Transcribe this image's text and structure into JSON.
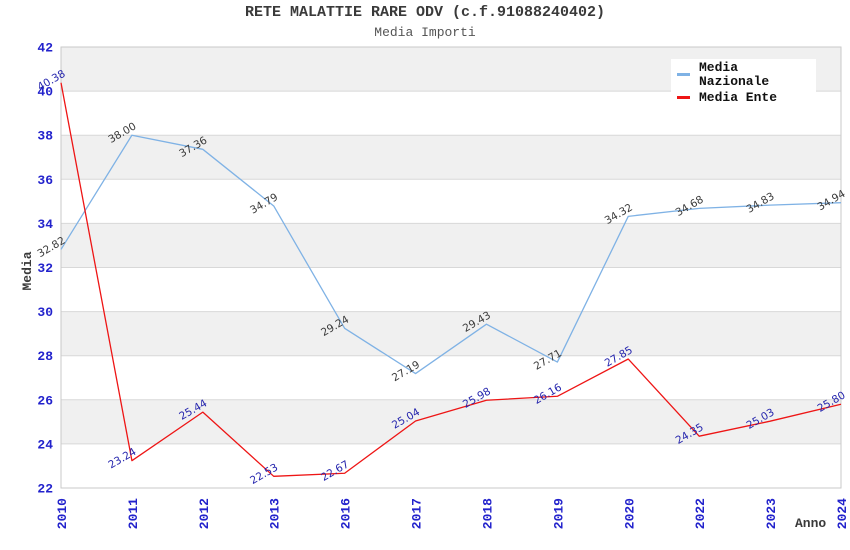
{
  "chart_data": {
    "type": "line",
    "title": "RETE MALATTIE RARE ODV (c.f.91088240402)",
    "subtitle": "Media Importi",
    "xlabel": "Anno",
    "ylabel": "Media",
    "ylim": [
      22,
      42
    ],
    "ytick_step": 2,
    "grid": "horizontal gridlines with alternating shaded bands",
    "legend_position": "top-right",
    "categories": [
      "2010",
      "2011",
      "2012",
      "2013",
      "2016",
      "2017",
      "2018",
      "2019",
      "2020",
      "2022",
      "2023",
      "2024"
    ],
    "series": [
      {
        "name": "Media Nazionale",
        "color": "#7fb2e5",
        "label_color": "#3a3a3a",
        "values": [
          32.82,
          38.0,
          37.36,
          34.79,
          29.24,
          27.19,
          29.43,
          27.71,
          34.32,
          34.68,
          34.83,
          34.94
        ]
      },
      {
        "name": "Media Ente",
        "color": "#ee1515",
        "label_color": "#2424ad",
        "values": [
          40.38,
          23.24,
          25.44,
          22.53,
          22.67,
          25.04,
          25.98,
          26.16,
          27.85,
          24.35,
          25.03,
          25.8
        ]
      }
    ],
    "colors": {
      "axis_tick": "#2222cc",
      "band": "#f0f0f0",
      "gridline": "#d8d8d8",
      "plot_border": "#c9c9c9",
      "title": "#3a3a3a",
      "subtitle": "#555555",
      "legend_text": "#111111",
      "legend_bg": "#ffffff"
    }
  }
}
